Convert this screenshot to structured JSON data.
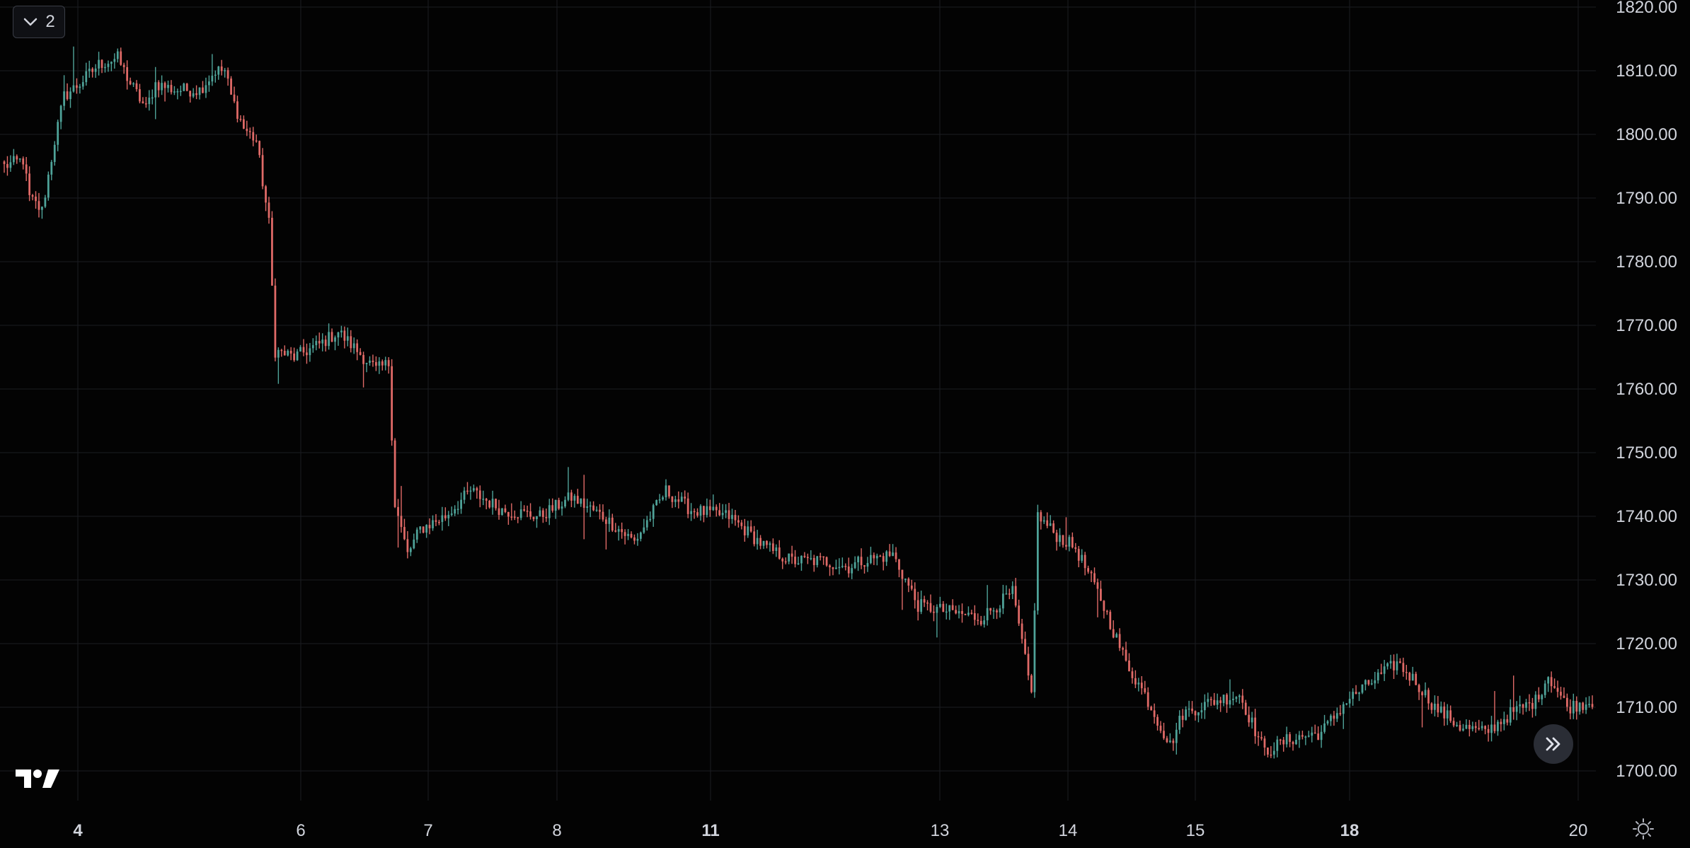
{
  "legend": {
    "count": "2"
  },
  "icons": {
    "toggle": "chevron-down-icon",
    "scroll": "double-chevron-right-icon",
    "settings": "sun-icon",
    "logo": "tradingview-logo-icon"
  },
  "colors": {
    "background": "#030303",
    "grid": "#1b1d22",
    "up": "#4fa399",
    "down": "#e06a67",
    "text": "#d1d4dc"
  },
  "chart_data": {
    "type": "candlestick",
    "title": "",
    "xlabel": "",
    "ylabel": "",
    "ylim": [
      1694,
      1820
    ],
    "y_ticks": [
      "1700.00",
      "1710.00",
      "1720.00",
      "1730.00",
      "1740.00",
      "1750.00",
      "1760.00",
      "1770.00",
      "1780.00",
      "1790.00",
      "1800.00",
      "1810.00",
      "1820.00"
    ],
    "x_ticks": [
      {
        "label": "4",
        "major": true
      },
      {
        "label": "6",
        "major": false
      },
      {
        "label": "7",
        "major": false
      },
      {
        "label": "8",
        "major": false
      },
      {
        "label": "11",
        "major": true
      },
      {
        "label": "13",
        "major": false
      },
      {
        "label": "14",
        "major": false
      },
      {
        "label": "15",
        "major": false
      },
      {
        "label": "18",
        "major": true
      },
      {
        "label": "20",
        "major": false
      }
    ],
    "price_path": [
      [
        0,
        1795
      ],
      [
        6,
        1796
      ],
      [
        8,
        1790
      ],
      [
        12,
        1788
      ],
      [
        16,
        1799
      ],
      [
        19,
        1806
      ],
      [
        24,
        1808
      ],
      [
        30,
        1811
      ],
      [
        36,
        1812
      ],
      [
        40,
        1808
      ],
      [
        45,
        1804
      ],
      [
        48,
        1808
      ],
      [
        54,
        1807
      ],
      [
        62,
        1807
      ],
      [
        67,
        1810
      ],
      [
        70,
        1810
      ],
      [
        72,
        1806
      ],
      [
        76,
        1801
      ],
      [
        80,
        1799
      ],
      [
        84,
        1786
      ],
      [
        86,
        1766
      ],
      [
        92,
        1765
      ],
      [
        100,
        1767
      ],
      [
        106,
        1769
      ],
      [
        112,
        1766
      ],
      [
        118,
        1763
      ],
      [
        122,
        1764
      ],
      [
        124,
        1742
      ],
      [
        128,
        1734
      ],
      [
        132,
        1738
      ],
      [
        140,
        1740
      ],
      [
        148,
        1744
      ],
      [
        158,
        1741
      ],
      [
        170,
        1740
      ],
      [
        180,
        1743
      ],
      [
        190,
        1740
      ],
      [
        200,
        1736
      ],
      [
        210,
        1744
      ],
      [
        218,
        1741
      ],
      [
        230,
        1740
      ],
      [
        242,
        1735
      ],
      [
        250,
        1733
      ],
      [
        260,
        1733
      ],
      [
        268,
        1732
      ],
      [
        272,
        1733
      ],
      [
        282,
        1734
      ],
      [
        290,
        1726
      ],
      [
        300,
        1725
      ],
      [
        310,
        1724
      ],
      [
        320,
        1728
      ],
      [
        326,
        1712
      ],
      [
        328,
        1740
      ],
      [
        334,
        1737
      ],
      [
        340,
        1735
      ],
      [
        348,
        1727
      ],
      [
        356,
        1717
      ],
      [
        362,
        1712
      ],
      [
        370,
        1704
      ],
      [
        374,
        1709
      ],
      [
        384,
        1711
      ],
      [
        392,
        1712
      ],
      [
        400,
        1703
      ],
      [
        408,
        1705
      ],
      [
        418,
        1706
      ],
      [
        426,
        1711
      ],
      [
        434,
        1714
      ],
      [
        442,
        1717
      ],
      [
        448,
        1714
      ],
      [
        454,
        1710
      ],
      [
        462,
        1707
      ],
      [
        470,
        1706
      ],
      [
        478,
        1709
      ],
      [
        486,
        1711
      ],
      [
        490,
        1715
      ],
      [
        496,
        1710
      ],
      [
        504,
        1711
      ]
    ]
  }
}
